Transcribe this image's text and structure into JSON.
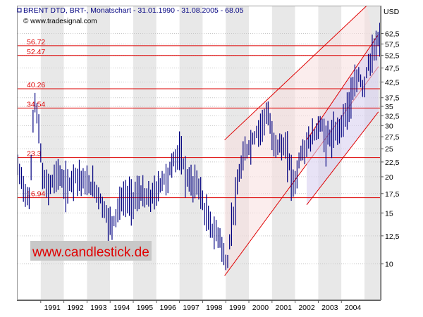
{
  "header": {
    "title": "BRENT  DTD, BRT-, Monatschart - 31.01.1990 - 31.08.2005 - 68.05",
    "source": "© www.tradesignal.com",
    "currency": "USD"
  },
  "watermark": "www.candlestick.de",
  "colors": {
    "background": "#ffffff",
    "band_a": "#ffffff",
    "band_b": "#e8e8e8",
    "price_bars": "#000080",
    "levels": "#dd0000",
    "channel_lines": "#e00000",
    "channel_fill": "#d8d0f0",
    "channel_fill_outer": "#f8dede",
    "watermark_text": "#e00000",
    "watermark_bg": "#c8c8c8"
  },
  "chart_data": {
    "type": "bar",
    "subtype": "monthly-ohlc",
    "ylim": [
      7.5,
      78
    ],
    "log_scale": true,
    "y_ticks": [
      10,
      12.5,
      15,
      17.5,
      20,
      22.5,
      25,
      27.5,
      30,
      32.5,
      35,
      37.5,
      42.5,
      47.5,
      52.5,
      57.5,
      62.5
    ],
    "y_tick_labels": [
      "10",
      "12,5",
      "15",
      "17,5",
      "20",
      "22,5",
      "25",
      "27,5",
      "30",
      "32,5",
      "35",
      "37,5",
      "42,5",
      "47,5",
      "52,5",
      "57,5",
      "62,5"
    ],
    "x_labels": [
      "1991",
      "1992",
      "1993",
      "1994",
      "1995",
      "1996",
      "1997",
      "1998",
      "1999",
      "2000",
      "2001",
      "2002",
      "2003",
      "2004"
    ],
    "x_range": [
      1990.0,
      2005.7
    ],
    "grid": "alternating-year-bands",
    "levels": [
      {
        "label": "56.72",
        "value": 56.72
      },
      {
        "label": "52.47",
        "value": 52.47
      },
      {
        "label": "40.26",
        "value": 40.26
      },
      {
        "label": "34.54",
        "value": 34.54
      },
      {
        "label": "23.3",
        "value": 23.3
      },
      {
        "label": "16.94",
        "value": 16.94
      }
    ],
    "channels": [
      {
        "lines": [
          [
            [
              1998.95,
              9.1
            ],
            [
              2005.6,
              48.0
            ]
          ],
          [
            [
              1998.95,
              26.8
            ],
            [
              2005.1,
              78.0
            ]
          ]
        ]
      },
      {
        "lines": [
          [
            [
              2002.5,
              16.0
            ],
            [
              2005.6,
              33.5
            ]
          ],
          [
            [
              2002.5,
              26.8
            ],
            [
              2005.6,
              62.0
            ]
          ]
        ]
      }
    ],
    "price_path": [
      [
        1990.0,
        21.5
      ],
      [
        1990.3,
        18.2
      ],
      [
        1990.45,
        16.4
      ],
      [
        1990.55,
        16.8
      ],
      [
        1990.62,
        27.0
      ],
      [
        1990.72,
        37.5
      ],
      [
        1990.8,
        34.5
      ],
      [
        1990.9,
        30.0
      ],
      [
        1991.0,
        24.0
      ],
      [
        1991.1,
        19.5
      ],
      [
        1991.3,
        18.5
      ],
      [
        1991.55,
        19.5
      ],
      [
        1991.75,
        21.0
      ],
      [
        1991.9,
        19.3
      ],
      [
        1992.2,
        18.5
      ],
      [
        1992.45,
        20.5
      ],
      [
        1992.7,
        20.0
      ],
      [
        1993.0,
        18.8
      ],
      [
        1993.3,
        18.5
      ],
      [
        1993.55,
        17.0
      ],
      [
        1993.8,
        15.0
      ],
      [
        1993.97,
        13.8
      ],
      [
        1994.15,
        14.0
      ],
      [
        1994.45,
        16.5
      ],
      [
        1994.7,
        17.0
      ],
      [
        1995.0,
        16.8
      ],
      [
        1995.3,
        17.8
      ],
      [
        1995.55,
        16.8
      ],
      [
        1995.75,
        17.0
      ],
      [
        1996.0,
        17.8
      ],
      [
        1996.25,
        19.5
      ],
      [
        1996.5,
        20.0
      ],
      [
        1996.7,
        22.5
      ],
      [
        1996.95,
        24.2
      ],
      [
        1997.1,
        23.2
      ],
      [
        1997.3,
        20.0
      ],
      [
        1997.55,
        18.8
      ],
      [
        1997.75,
        19.2
      ],
      [
        1997.9,
        18.0
      ],
      [
        1998.05,
        15.5
      ],
      [
        1998.3,
        13.8
      ],
      [
        1998.5,
        12.8
      ],
      [
        1998.75,
        12.5
      ],
      [
        1998.95,
        10.2
      ],
      [
        1999.1,
        10.0
      ],
      [
        1999.2,
        13.0
      ],
      [
        1999.45,
        17.2
      ],
      [
        1999.6,
        20.5
      ],
      [
        1999.8,
        23.8
      ],
      [
        2000.0,
        25.5
      ],
      [
        2000.25,
        27.5
      ],
      [
        2000.5,
        30.0
      ],
      [
        2000.75,
        33.0
      ],
      [
        2000.9,
        31.0
      ],
      [
        2001.0,
        27.0
      ],
      [
        2001.2,
        26.0
      ],
      [
        2001.45,
        25.5
      ],
      [
        2001.7,
        24.0
      ],
      [
        2001.85,
        20.0
      ],
      [
        2002.0,
        19.0
      ],
      [
        2002.2,
        23.5
      ],
      [
        2002.45,
        25.5
      ],
      [
        2002.7,
        27.2
      ],
      [
        2002.9,
        28.5
      ],
      [
        2003.1,
        31.0
      ],
      [
        2003.3,
        27.0
      ],
      [
        2003.5,
        27.5
      ],
      [
        2003.7,
        28.0
      ],
      [
        2003.9,
        29.5
      ],
      [
        2004.1,
        32.0
      ],
      [
        2004.35,
        36.5
      ],
      [
        2004.55,
        40.0
      ],
      [
        2004.75,
        45.0
      ],
      [
        2004.95,
        40.0
      ],
      [
        2005.15,
        49.0
      ],
      [
        2005.35,
        52.0
      ],
      [
        2005.5,
        56.0
      ],
      [
        2005.62,
        62.0
      ]
    ],
    "last_value": 68.05
  }
}
